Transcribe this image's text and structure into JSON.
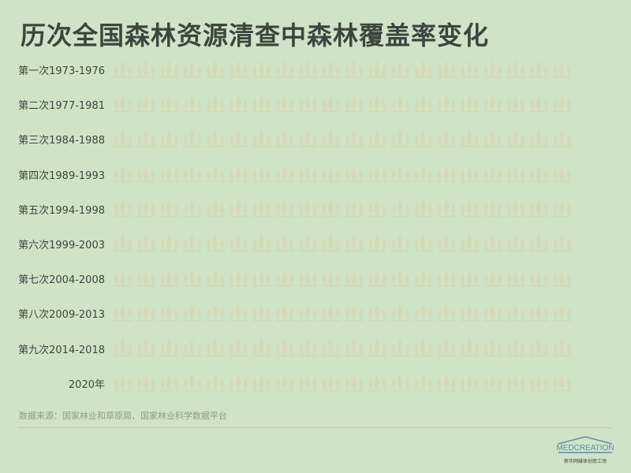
{
  "chart_data": {
    "type": "pictograph",
    "title": "历次全国森林资源清查中森林覆盖率变化",
    "icon": "trees-icon",
    "icons_per_row": 20,
    "categories": [
      "第一次1973-1976",
      "第二次1977-1981",
      "第三次1984-1988",
      "第四次1989-1993",
      "第五次1994-1998",
      "第六次1999-2003",
      "第七次2004-2008",
      "第八次2009-2013",
      "第九次2014-2018",
      "2020年"
    ],
    "filled_icons": [
      1.4,
      0,
      0,
      0,
      0,
      0,
      0,
      0,
      0,
      0
    ],
    "colors": {
      "filled": "#7fbb92",
      "empty": "#d7d8b6",
      "background": "#cfe4c6"
    }
  },
  "source": "数据来源：国家林业和草原局、国家林业科学数据平台",
  "logo": {
    "brand": "MEDCREATION",
    "subtitle": "新华网媒体创意工场"
  }
}
